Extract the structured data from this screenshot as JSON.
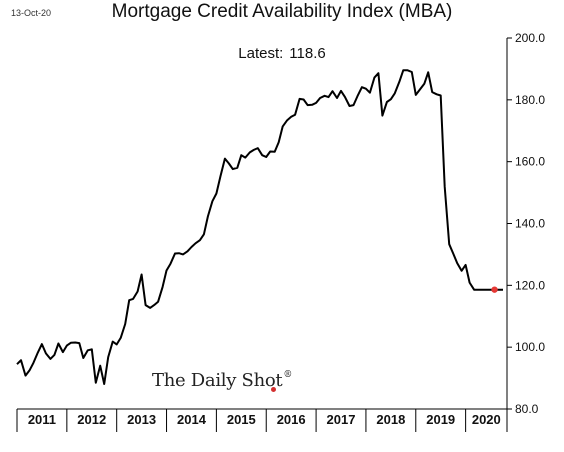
{
  "header": {
    "date": "13-Oct-20",
    "title": "Mortgage Credit Availability Index (MBA)",
    "latest_label": "Latest:",
    "latest_value": "118.6"
  },
  "logo": {
    "text": "The Daily Shot",
    "mark": "®",
    "accent": "#d32f2f"
  },
  "chart_data": {
    "type": "line",
    "title": "Mortgage Credit Availability Index (MBA)",
    "xlabel": "",
    "ylabel": "",
    "x_range": [
      2011,
      2020.83
    ],
    "ylim": [
      80,
      200
    ],
    "yticks": [
      80,
      100,
      120,
      140,
      160,
      180,
      200
    ],
    "ytick_labels": [
      "80.0",
      "100.0",
      "120.0",
      "140.0",
      "160.0",
      "180.0",
      "200.0"
    ],
    "categories": [
      "2011",
      "2012",
      "2013",
      "2014",
      "2015",
      "2016",
      "2017",
      "2018",
      "2019",
      "2020"
    ],
    "y_axis_side": "right",
    "grid": false,
    "line_color": "#000000",
    "marker_color": "#e53935",
    "series": [
      {
        "x": [
          2011.0,
          2011.08,
          2011.17,
          2011.25,
          2011.33,
          2011.42,
          2011.5,
          2011.58,
          2011.67,
          2011.75,
          2011.83,
          2011.92,
          2012.0,
          2012.08,
          2012.17,
          2012.25,
          2012.33,
          2012.42,
          2012.5,
          2012.58,
          2012.67,
          2012.75,
          2012.83,
          2012.92,
          2013.0,
          2013.08,
          2013.17,
          2013.25,
          2013.33,
          2013.42,
          2013.5,
          2013.58,
          2013.67,
          2013.75,
          2013.83,
          2013.92,
          2014.0,
          2014.08,
          2014.17,
          2014.25,
          2014.33,
          2014.42,
          2014.5,
          2014.58,
          2014.67,
          2014.75,
          2014.83,
          2014.92,
          2015.0,
          2015.08,
          2015.17,
          2015.25,
          2015.33,
          2015.42,
          2015.5,
          2015.58,
          2015.67,
          2015.75,
          2015.83,
          2015.92,
          2016.0,
          2016.08,
          2016.17,
          2016.25,
          2016.33,
          2016.42,
          2016.5,
          2016.58,
          2016.67,
          2016.75,
          2016.83,
          2016.92,
          2017.0,
          2017.08,
          2017.17,
          2017.25,
          2017.33,
          2017.42,
          2017.5,
          2017.58,
          2017.67,
          2017.75,
          2017.83,
          2017.92,
          2018.0,
          2018.08,
          2018.17,
          2018.25,
          2018.33,
          2018.42,
          2018.5,
          2018.58,
          2018.67,
          2018.75,
          2018.83,
          2018.92,
          2019.0,
          2019.08,
          2019.17,
          2019.25,
          2019.33,
          2019.42,
          2019.5,
          2019.58,
          2019.67,
          2019.75,
          2019.83,
          2019.92,
          2020.0,
          2020.08,
          2020.17,
          2020.25,
          2020.33,
          2020.42,
          2020.5,
          2020.58,
          2020.67,
          2020.75
        ],
        "y": [
          94.5,
          95.8,
          90.8,
          92.5,
          94.9,
          98.3,
          101.0,
          98.0,
          96.2,
          97.5,
          101.2,
          98.4,
          100.5,
          101.4,
          101.5,
          101.3,
          96.5,
          99.0,
          99.3,
          88.5,
          94.0,
          88.1,
          96.8,
          101.8,
          100.9,
          103.0,
          107.5,
          115.2,
          115.6,
          118.0,
          123.5,
          113.6,
          112.7,
          113.6,
          114.7,
          119.5,
          124.8,
          127.0,
          130.3,
          130.4,
          130.0,
          131.0,
          132.4,
          133.6,
          134.6,
          136.5,
          142.3,
          147.2,
          149.7,
          155.2,
          161.0,
          159.4,
          157.6,
          158.0,
          162.1,
          161.3,
          163.0,
          163.8,
          164.4,
          162.1,
          161.5,
          163.3,
          163.2,
          166.3,
          171.4,
          173.4,
          174.5,
          175.2,
          180.3,
          180.1,
          178.3,
          178.4,
          179.0,
          180.6,
          181.3,
          180.9,
          182.8,
          180.6,
          182.9,
          180.9,
          178.0,
          178.3,
          181.2,
          184.1,
          183.6,
          182.3,
          187.2,
          188.6,
          174.9,
          179.3,
          180.2,
          182.1,
          185.8,
          189.6,
          189.6,
          189.0,
          181.6,
          183.3,
          185.2,
          188.9,
          182.5,
          181.8,
          181.4,
          151.9,
          133.3,
          130.3,
          127.2,
          124.7,
          126.6,
          120.9,
          118.6,
          118.6,
          118.6,
          118.6,
          118.6,
          118.6,
          118.6,
          118.6
        ]
      }
    ],
    "latest_point": {
      "x": 2020.58,
      "y": 118.6
    }
  }
}
